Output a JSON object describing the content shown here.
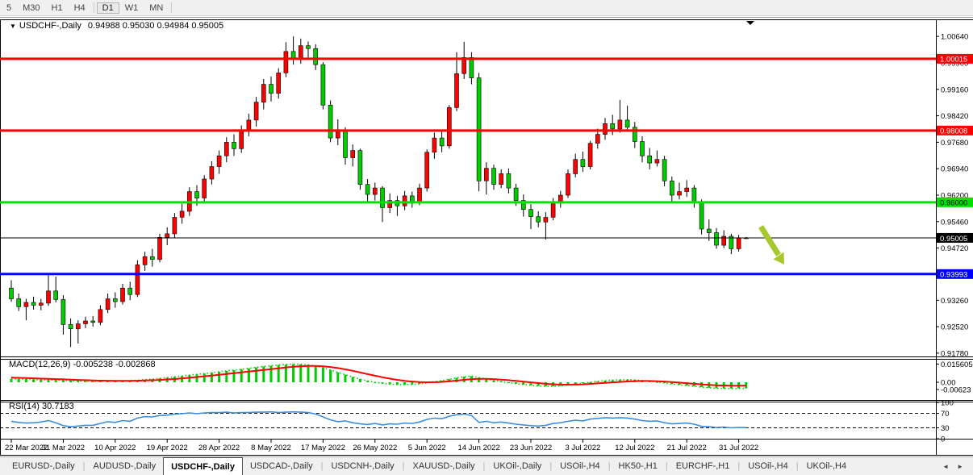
{
  "timeframe_toolbar": {
    "items": [
      "5",
      "M30",
      "H1",
      "H4",
      "D1",
      "W1",
      "MN"
    ],
    "active": "D1",
    "separators_after": [
      "H4",
      "MN"
    ]
  },
  "chart": {
    "collapse_icon": "▼",
    "title_symbol": "USDCHF-,Daily",
    "title_ohlc": "0.94988 0.95030 0.94984 0.95005"
  },
  "indicators": {
    "macd_label": "MACD(12,26,9) -0.005238 -0.002868",
    "rsi_label": "RSI(14) 30.7183"
  },
  "chart_data": {
    "type": "candlestick",
    "symbol": "USDCHF",
    "timeframe": "Daily",
    "ylim": [
      0.9171,
      1.0096
    ],
    "y_tick_labels": [
      "1.00640",
      "0.99900",
      "0.99160",
      "0.98420",
      "0.97680",
      "0.96940",
      "0.96200",
      "0.95460",
      "0.94720",
      "0.93260",
      "0.92520",
      "0.91780"
    ],
    "x_tick_labels": [
      "22 Mar 2022",
      "31 Mar 2022",
      "10 Apr 2022",
      "19 Apr 2022",
      "28 Apr 2022",
      "8 May 2022",
      "17 May 2022",
      "26 May 2022",
      "5 Jun 2022",
      "14 Jun 2022",
      "23 Jun 2022",
      "3 Jul 2022",
      "12 Jul 2022",
      "21 Jul 2022",
      "31 Jul 2022"
    ],
    "x_tick_indices": [
      0,
      7,
      14,
      21,
      28,
      35,
      42,
      49,
      56,
      63,
      70,
      77,
      84,
      91,
      98
    ],
    "colors": {
      "bull": "#ff0000",
      "bear": "#00cc00",
      "wick": "#000000",
      "macd_hist": "#00cc00",
      "macd_main_dots": "#00cc00",
      "macd_signal": "#ff0000",
      "rsi_line": "#3e8ede",
      "rsi_levels": "#000000"
    },
    "candles_ohlc": [
      [
        0.936,
        0.9382,
        0.9322,
        0.933
      ],
      [
        0.933,
        0.9345,
        0.9296,
        0.9308
      ],
      [
        0.9308,
        0.933,
        0.927,
        0.932
      ],
      [
        0.932,
        0.9336,
        0.93,
        0.9312
      ],
      [
        0.9312,
        0.933,
        0.9298,
        0.9318
      ],
      [
        0.9318,
        0.94,
        0.931,
        0.9352
      ],
      [
        0.9352,
        0.9392,
        0.932,
        0.9328
      ],
      [
        0.9328,
        0.934,
        0.923,
        0.9258
      ],
      [
        0.9258,
        0.9275,
        0.9195,
        0.9246
      ],
      [
        0.9246,
        0.927,
        0.9205,
        0.926
      ],
      [
        0.926,
        0.928,
        0.9248,
        0.9268
      ],
      [
        0.9268,
        0.9282,
        0.9252,
        0.9264
      ],
      [
        0.9264,
        0.9312,
        0.9256,
        0.93
      ],
      [
        0.93,
        0.9345,
        0.929,
        0.933
      ],
      [
        0.933,
        0.9348,
        0.9305,
        0.9322
      ],
      [
        0.9322,
        0.9372,
        0.9314,
        0.936
      ],
      [
        0.936,
        0.9378,
        0.9326,
        0.9342
      ],
      [
        0.9342,
        0.9438,
        0.9335,
        0.9425
      ],
      [
        0.9425,
        0.9462,
        0.9408,
        0.9448
      ],
      [
        0.9448,
        0.947,
        0.942,
        0.944
      ],
      [
        0.944,
        0.9512,
        0.9432,
        0.9502
      ],
      [
        0.9502,
        0.953,
        0.948,
        0.9512
      ],
      [
        0.9512,
        0.957,
        0.95,
        0.9558
      ],
      [
        0.9558,
        0.9596,
        0.954,
        0.9575
      ],
      [
        0.9575,
        0.9642,
        0.9562,
        0.963
      ],
      [
        0.963,
        0.9648,
        0.959,
        0.9612
      ],
      [
        0.9612,
        0.9676,
        0.96,
        0.9665
      ],
      [
        0.9665,
        0.9715,
        0.965,
        0.97
      ],
      [
        0.97,
        0.9745,
        0.968,
        0.973
      ],
      [
        0.973,
        0.9782,
        0.9712,
        0.9768
      ],
      [
        0.9768,
        0.979,
        0.973,
        0.975
      ],
      [
        0.975,
        0.9815,
        0.9738,
        0.9802
      ],
      [
        0.9802,
        0.9848,
        0.9785,
        0.983
      ],
      [
        0.983,
        0.9895,
        0.9812,
        0.988
      ],
      [
        0.988,
        0.9945,
        0.986,
        0.993
      ],
      [
        0.993,
        0.9952,
        0.9882,
        0.9905
      ],
      [
        0.9905,
        0.9975,
        0.989,
        0.9962
      ],
      [
        0.9962,
        1.0048,
        0.995,
        1.0022
      ],
      [
        1.0022,
        1.0064,
        0.9985,
        1.0
      ],
      [
        1.0,
        1.0058,
        0.9988,
        1.0038
      ],
      [
        1.0038,
        1.005,
        1.0005,
        1.003
      ],
      [
        1.003,
        1.0042,
        0.997,
        0.9985
      ],
      [
        0.9985,
        0.9992,
        0.986,
        0.9872
      ],
      [
        0.9872,
        0.9885,
        0.9768,
        0.978
      ],
      [
        0.978,
        0.9832,
        0.976,
        0.98
      ],
      [
        0.98,
        0.981,
        0.9705,
        0.9725
      ],
      [
        0.9725,
        0.9762,
        0.97,
        0.9745
      ],
      [
        0.9745,
        0.975,
        0.9635,
        0.965
      ],
      [
        0.965,
        0.9665,
        0.96,
        0.9622
      ],
      [
        0.9622,
        0.9655,
        0.9605,
        0.964
      ],
      [
        0.964,
        0.9645,
        0.9545,
        0.9585
      ],
      [
        0.9585,
        0.9625,
        0.957,
        0.9605
      ],
      [
        0.9605,
        0.9618,
        0.9562,
        0.959
      ],
      [
        0.959,
        0.9632,
        0.9578,
        0.9618
      ],
      [
        0.9618,
        0.963,
        0.9585,
        0.96
      ],
      [
        0.96,
        0.9652,
        0.9592,
        0.964
      ],
      [
        0.964,
        0.9748,
        0.963,
        0.974
      ],
      [
        0.974,
        0.9795,
        0.9722,
        0.978
      ],
      [
        0.978,
        0.98,
        0.974,
        0.9758
      ],
      [
        0.9758,
        0.9872,
        0.975,
        0.9865
      ],
      [
        0.9865,
        1.002,
        0.9855,
        0.996
      ],
      [
        0.996,
        1.0049,
        0.9945,
        1.0005
      ],
      [
        1.0005,
        1.002,
        0.993,
        0.9948
      ],
      [
        0.9948,
        0.9962,
        0.9631,
        0.966
      ],
      [
        0.966,
        0.9712,
        0.9622,
        0.9695
      ],
      [
        0.9695,
        0.9705,
        0.9635,
        0.965
      ],
      [
        0.965,
        0.9692,
        0.964,
        0.968
      ],
      [
        0.968,
        0.9695,
        0.9625,
        0.964
      ],
      [
        0.964,
        0.9652,
        0.959,
        0.9605
      ],
      [
        0.9605,
        0.9622,
        0.956,
        0.958
      ],
      [
        0.958,
        0.9595,
        0.9525,
        0.956
      ],
      [
        0.956,
        0.9575,
        0.953,
        0.9545
      ],
      [
        0.9545,
        0.9572,
        0.9496,
        0.9558
      ],
      [
        0.9558,
        0.9612,
        0.955,
        0.96
      ],
      [
        0.96,
        0.9632,
        0.9585,
        0.962
      ],
      [
        0.962,
        0.9692,
        0.9612,
        0.968
      ],
      [
        0.968,
        0.9736,
        0.967,
        0.972
      ],
      [
        0.972,
        0.9742,
        0.9685,
        0.97
      ],
      [
        0.97,
        0.9772,
        0.9692,
        0.9765
      ],
      [
        0.9765,
        0.9806,
        0.975,
        0.979
      ],
      [
        0.979,
        0.9836,
        0.9775,
        0.982
      ],
      [
        0.982,
        0.9845,
        0.9788,
        0.9805
      ],
      [
        0.9805,
        0.9886,
        0.9795,
        0.983
      ],
      [
        0.983,
        0.987,
        0.98,
        0.981
      ],
      [
        0.981,
        0.9825,
        0.9752,
        0.977
      ],
      [
        0.977,
        0.9785,
        0.9712,
        0.973
      ],
      [
        0.973,
        0.9752,
        0.9692,
        0.971
      ],
      [
        0.971,
        0.9745,
        0.97,
        0.972
      ],
      [
        0.972,
        0.973,
        0.9645,
        0.966
      ],
      [
        0.966,
        0.9672,
        0.9602,
        0.962
      ],
      [
        0.962,
        0.9655,
        0.9608,
        0.963
      ],
      [
        0.963,
        0.9662,
        0.9615,
        0.964
      ],
      [
        0.964,
        0.9648,
        0.9585,
        0.96
      ],
      [
        0.96,
        0.9608,
        0.951,
        0.9525
      ],
      [
        0.9525,
        0.9552,
        0.9492,
        0.9515
      ],
      [
        0.9515,
        0.9528,
        0.947,
        0.948
      ],
      [
        0.948,
        0.9522,
        0.9472,
        0.9505
      ],
      [
        0.9505,
        0.9512,
        0.9455,
        0.947
      ],
      [
        0.947,
        0.9509,
        0.9462,
        0.95
      ],
      [
        0.94988,
        0.9503,
        0.94984,
        0.95005
      ]
    ],
    "hlines": [
      {
        "value": 1.00015,
        "label": "1.00015",
        "color": "#ff0000",
        "text_color": "#ffffff",
        "width": 3
      },
      {
        "value": 0.98008,
        "label": "0.98008",
        "color": "#ff0000",
        "text_color": "#ffffff",
        "width": 3
      },
      {
        "value": 0.96,
        "label": "0.96000",
        "color": "#00e000",
        "text_color": "#000000",
        "width": 3
      },
      {
        "value": 0.95005,
        "label": "0.95005",
        "color": "#000000",
        "text_color": "#ffffff",
        "width": 1
      },
      {
        "value": 0.93993,
        "label": "0.93993",
        "color": "#0000ff",
        "text_color": "#ffffff",
        "width": 3
      }
    ],
    "arrow_annotation": {
      "color": "#a6c72e",
      "direction": "down-right"
    },
    "macd": {
      "y_tick_labels": [
        "0.015605",
        "0.00",
        "-0.00623"
      ],
      "y_tick_values": [
        0.015605,
        0,
        -0.00623
      ],
      "main": [
        0.003,
        0.0028,
        0.0026,
        0.0024,
        0.0022,
        0.0021,
        0.0019,
        0.0016,
        0.0013,
        0.0011,
        0.0009,
        0.0008,
        0.0008,
        0.0009,
        0.001,
        0.0012,
        0.0014,
        0.0018,
        0.0023,
        0.0028,
        0.0034,
        0.004,
        0.0047,
        0.0054,
        0.0062,
        0.0068,
        0.0075,
        0.0082,
        0.009,
        0.0098,
        0.0104,
        0.0112,
        0.012,
        0.0128,
        0.0136,
        0.0142,
        0.0148,
        0.0153,
        0.0156,
        0.0155,
        0.015,
        0.014,
        0.0125,
        0.0105,
        0.0085,
        0.0065,
        0.0045,
        0.0028,
        0.0012,
        0.0,
        -0.001,
        -0.0016,
        -0.002,
        -0.0021,
        -0.0019,
        -0.0014,
        -0.0006,
        0.0004,
        0.0014,
        0.0026,
        0.0038,
        0.0048,
        0.0053,
        0.004,
        0.0028,
        0.0016,
        0.0006,
        -0.0004,
        -0.0012,
        -0.002,
        -0.0026,
        -0.0032,
        -0.0035,
        -0.0034,
        -0.003,
        -0.0024,
        -0.0016,
        -0.0008,
        0.0,
        0.0008,
        0.0014,
        0.0018,
        0.0021,
        0.0022,
        0.002,
        0.0015,
        0.0009,
        0.0002,
        -0.0006,
        -0.0015,
        -0.0022,
        -0.0028,
        -0.0034,
        -0.0042,
        -0.0048,
        -0.0052,
        -0.0054,
        -0.0055,
        -0.0053,
        -0.005238
      ],
      "signal": [
        0.004,
        0.0038,
        0.0036,
        0.0034,
        0.0031,
        0.0029,
        0.0027,
        0.0025,
        0.0022,
        0.002,
        0.0018,
        0.0016,
        0.0014,
        0.0013,
        0.0012,
        0.0012,
        0.0012,
        0.0013,
        0.0015,
        0.0017,
        0.002,
        0.0024,
        0.0028,
        0.0033,
        0.0039,
        0.0045,
        0.0051,
        0.0057,
        0.0064,
        0.0071,
        0.0078,
        0.0085,
        0.0092,
        0.0099,
        0.0106,
        0.0113,
        0.012,
        0.0127,
        0.0133,
        0.0137,
        0.014,
        0.014,
        0.0137,
        0.0131,
        0.0122,
        0.0111,
        0.0098,
        0.0084,
        0.007,
        0.0056,
        0.0043,
        0.0031,
        0.0021,
        0.0012,
        0.0006,
        0.0002,
        0.0,
        0.0001,
        0.0003,
        0.0008,
        0.0014,
        0.0021,
        0.0027,
        0.003,
        0.003,
        0.0027,
        0.0023,
        0.0018,
        0.0012,
        0.0005,
        -0.0001,
        -0.0007,
        -0.0013,
        -0.0017,
        -0.002,
        -0.0021,
        -0.002,
        -0.0018,
        -0.0014,
        -0.001,
        -0.0005,
        -0.0001,
        0.0003,
        0.0007,
        0.001,
        0.0011,
        0.0011,
        0.0009,
        0.0006,
        0.0002,
        -0.0003,
        -0.0008,
        -0.0013,
        -0.0018,
        -0.0022,
        -0.0026,
        -0.0028,
        -0.0029,
        -0.0029,
        -0.002868
      ]
    },
    "rsi": {
      "levels": [
        70,
        30
      ],
      "y_tick_labels": [
        "100",
        "70",
        "30",
        "0"
      ],
      "y_tick_values": [
        100,
        70,
        30,
        0
      ],
      "values": [
        48,
        45,
        43,
        44,
        46,
        50,
        44,
        36,
        33,
        35,
        37,
        37,
        42,
        47,
        45,
        50,
        48,
        57,
        61,
        60,
        64,
        65,
        68,
        69,
        71,
        69,
        71,
        72,
        72,
        73,
        71,
        72,
        72,
        73,
        73,
        74,
        72,
        73,
        74,
        73,
        72,
        68,
        60,
        52,
        47,
        49,
        44,
        41,
        39,
        42,
        38,
        41,
        40,
        43,
        42,
        46,
        53,
        57,
        55,
        62,
        66,
        68,
        64,
        45,
        48,
        44,
        46,
        43,
        40,
        38,
        36,
        35,
        37,
        42,
        44,
        48,
        51,
        49,
        54,
        56,
        58,
        57,
        58,
        57,
        54,
        50,
        48,
        49,
        44,
        41,
        42,
        43,
        40,
        34,
        33,
        31,
        32,
        30,
        31,
        30.7
      ]
    }
  },
  "bottom_tabs": {
    "tabs": [
      "EURUSD-,Daily",
      "AUDUSD-,Daily",
      "USDCHF-,Daily",
      "USDCAD-,Daily",
      "USDCNH-,Daily",
      "XAUUSD-,Daily",
      "UKOil-,Daily",
      "USOil-,H4",
      "HK50-,H1",
      "EURCHF-,H1",
      "USOil-,H4",
      "UKOil-,H4"
    ],
    "active_index": 2,
    "scroll_left": "◄",
    "scroll_right": "►"
  }
}
